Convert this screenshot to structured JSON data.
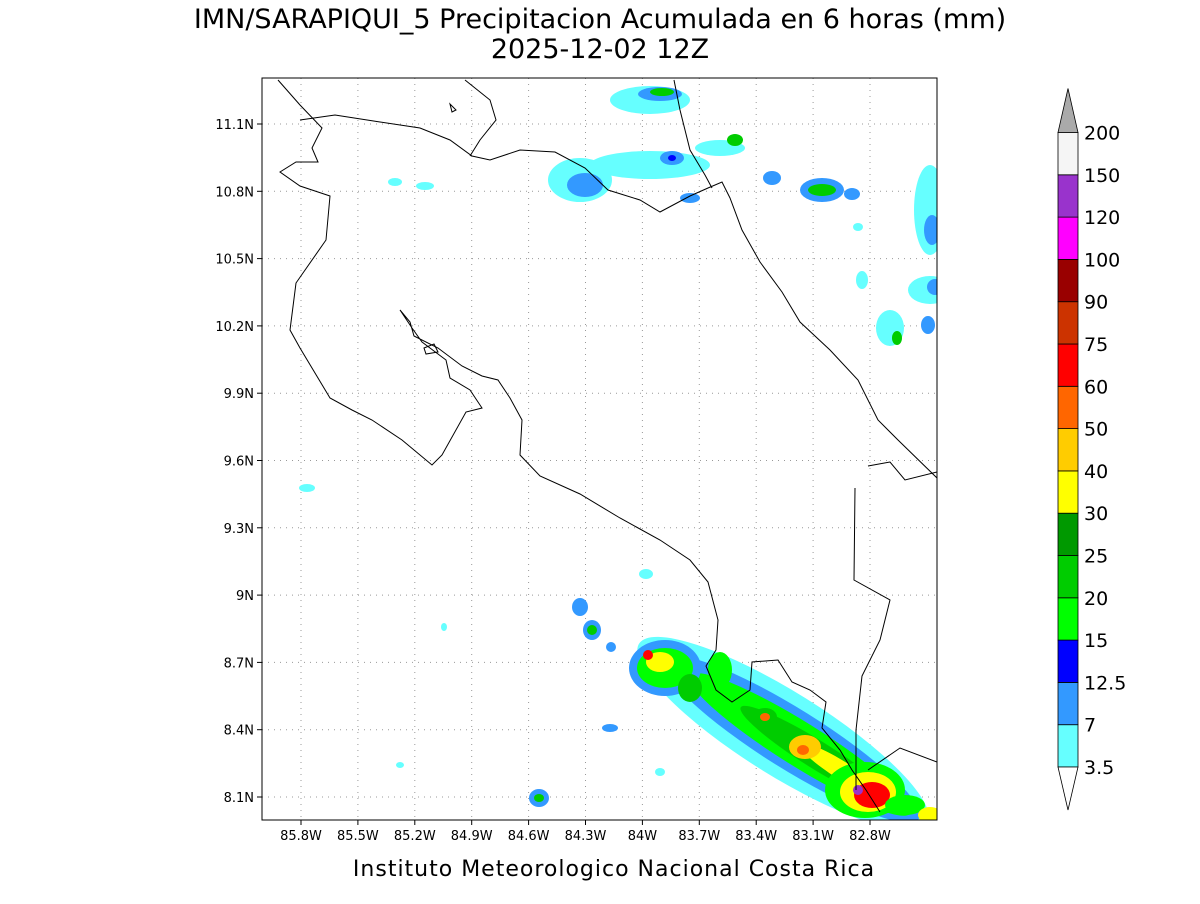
{
  "title": "IMN/SARAPIQUI_5 Precipitacion Acumulada en 6 horas (mm)",
  "subtitle": "2025-12-02 12Z",
  "footer": "Instituto Meteorologico Nacional Costa Rica",
  "map": {
    "lon_labels": [
      "85.8W",
      "85.5W",
      "85.2W",
      "84.9W",
      "84.6W",
      "84.3W",
      "84W",
      "83.7W",
      "83.4W",
      "83.1W",
      "82.8W"
    ],
    "lat_labels": [
      "8.1N",
      "8.4N",
      "8.7N",
      "9N",
      "9.3N",
      "9.6N",
      "9.9N",
      "10.2N",
      "10.5N",
      "10.8N",
      "11.1N"
    ]
  },
  "colorbar": {
    "labels": [
      "3.5",
      "7",
      "12.5",
      "15",
      "20",
      "25",
      "30",
      "40",
      "50",
      "60",
      "75",
      "90",
      "100",
      "120",
      "150",
      "200"
    ],
    "colors": [
      "#66ffff",
      "#3399ff",
      "#0000ff",
      "#00ff00",
      "#00cc00",
      "#009900",
      "#ffff00",
      "#ffcc00",
      "#ff6600",
      "#ff0000",
      "#cc3300",
      "#990000",
      "#ff00ff",
      "#9933cc",
      "#f5f5f5"
    ],
    "below_color": "#ffffff",
    "above_color": "#aaaaaa"
  }
}
